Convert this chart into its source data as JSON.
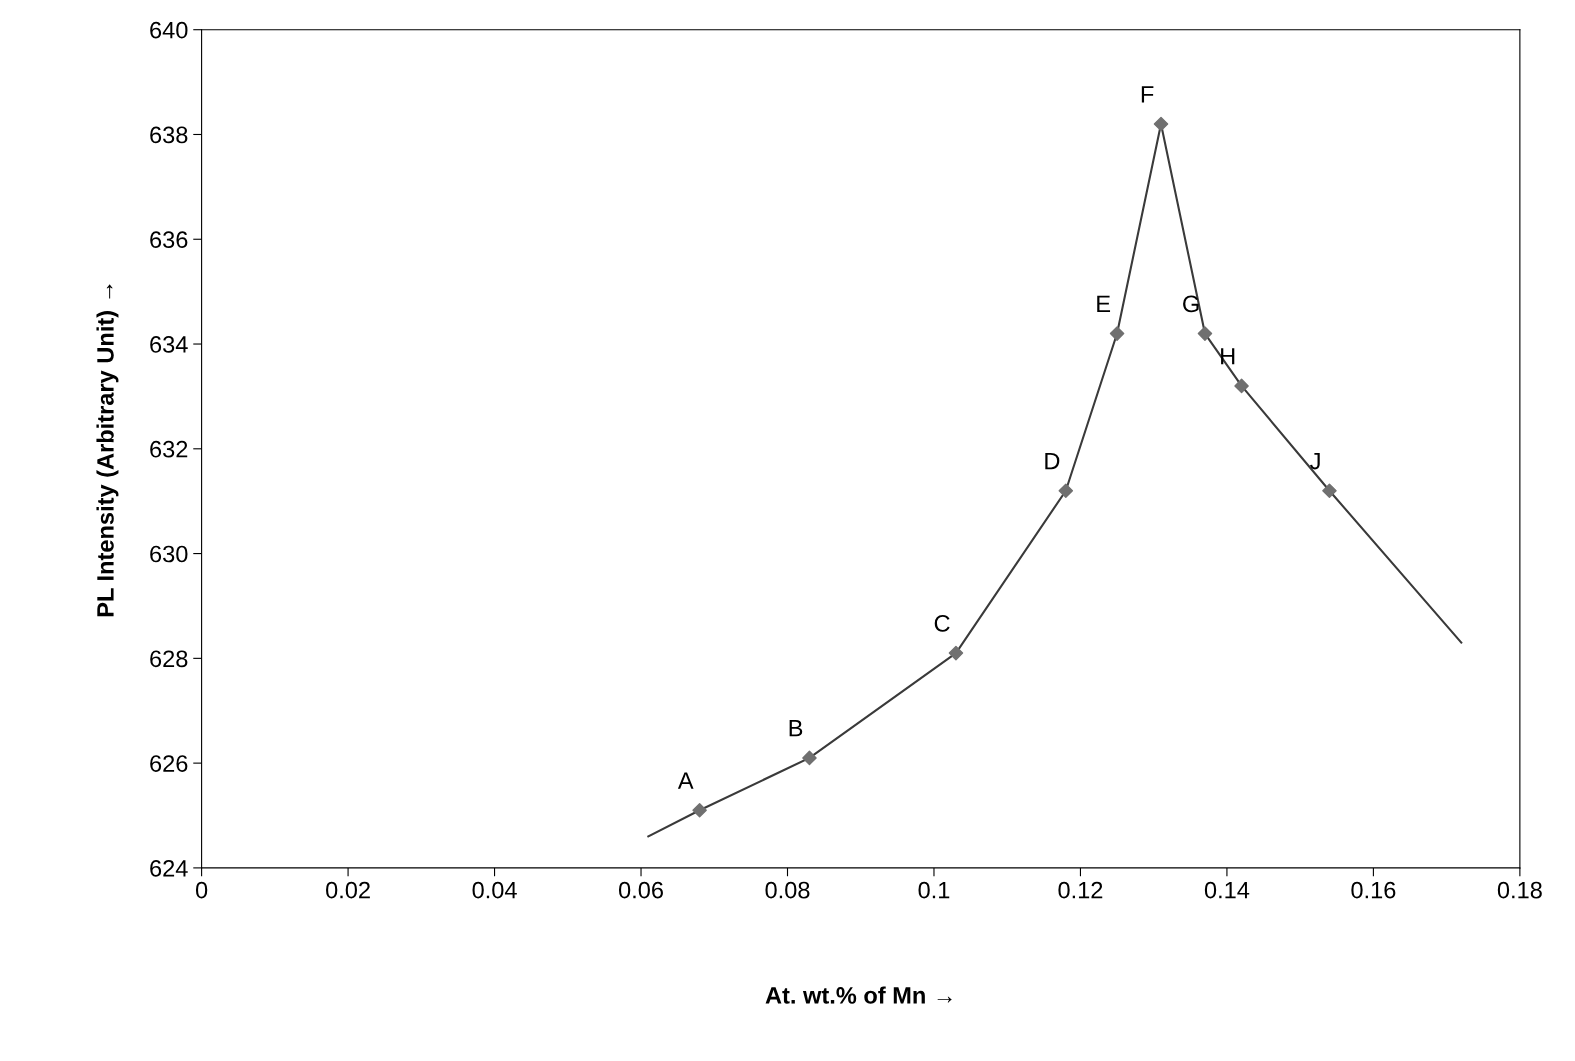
{
  "chart_data": {
    "type": "scatter",
    "xlabel": "At. wt.% of Mn →",
    "ylabel": "PL Intensity (Arbitrary Unit) →",
    "series": [
      {
        "type": "line",
        "color": "#3a3a3a",
        "marker": "none",
        "x": [
          0.061,
          0.068,
          0.083,
          0.103,
          0.118,
          0.125,
          0.131,
          0.137,
          0.142,
          0.154,
          0.172
        ],
        "values": [
          624.6,
          625.1,
          626.1,
          628.1,
          631.2,
          634.2,
          638.2,
          634.2,
          633.2,
          631.2,
          628.3
        ]
      },
      {
        "color": "#707070",
        "marker": "diamond",
        "x": [
          0.068,
          0.083,
          0.103,
          0.118,
          0.125,
          0.131,
          0.137,
          0.142,
          0.154
        ],
        "values": [
          625.1,
          626.1,
          628.1,
          631.2,
          634.2,
          638.2,
          634.2,
          633.2,
          631.2
        ]
      }
    ],
    "annotations": [
      {
        "text": "A",
        "x": 0.068,
        "y": 625.1
      },
      {
        "text": "B",
        "x": 0.083,
        "y": 626.1
      },
      {
        "text": "C",
        "x": 0.103,
        "y": 628.1
      },
      {
        "text": "D",
        "x": 0.118,
        "y": 631.2
      },
      {
        "text": "E",
        "x": 0.125,
        "y": 634.2
      },
      {
        "text": "F",
        "x": 0.131,
        "y": 638.2
      },
      {
        "text": "G",
        "x": 0.137,
        "y": 634.2
      },
      {
        "text": "H",
        "x": 0.142,
        "y": 633.2
      },
      {
        "text": "J",
        "x": 0.154,
        "y": 631.2
      }
    ],
    "xlim": [
      0,
      0.18
    ],
    "xticks": [
      0,
      0.02,
      0.04,
      0.06,
      0.08,
      0.1,
      0.12,
      0.14,
      0.16,
      0.18
    ],
    "ylim": [
      624,
      640
    ],
    "yticks": [
      624,
      626,
      628,
      630,
      632,
      634,
      636,
      638,
      640
    ],
    "grid": false,
    "legend": false
  }
}
